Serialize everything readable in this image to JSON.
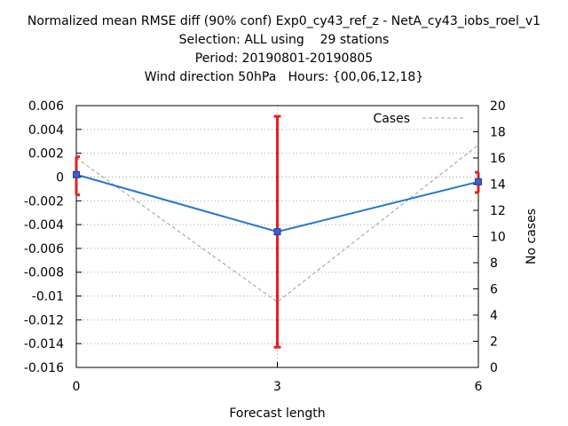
{
  "chart_data": {
    "type": "line",
    "title_lines": [
      "Normalized mean RMSE diff (90% conf) Exp0_cy43_ref_z - NetA_cy43_iobs_roel_v1",
      "Selection: ALL using    29 stations",
      "Period: 20190801-20190805",
      "Wind direction 50hPa   Hours: {00,06,12,18}"
    ],
    "xlabel": "Forecast length",
    "ylabel": "",
    "y2label": "No cases",
    "x_ticks": [
      0,
      3,
      6
    ],
    "xlim": [
      0,
      6
    ],
    "ylim": [
      -0.016,
      0.006
    ],
    "y_ticks": [
      0.006,
      0.004,
      0.002,
      0,
      -0.002,
      -0.004,
      -0.006,
      -0.008,
      -0.01,
      -0.012,
      -0.014,
      -0.016
    ],
    "y2lim": [
      0,
      20
    ],
    "y2_ticks": [
      0,
      2,
      4,
      6,
      8,
      10,
      12,
      14,
      16,
      18,
      20
    ],
    "grid": true,
    "legend_position": "top-right",
    "series": [
      {
        "name": "",
        "axis": "left",
        "color": "#1f77d4",
        "x": [
          0,
          3,
          6
        ],
        "y": [
          0.0002,
          -0.0046,
          -0.0004
        ],
        "err_low": [
          -0.0015,
          -0.0143,
          -0.0013
        ],
        "err_high": [
          0.0017,
          0.0051,
          0.0004
        ],
        "err_color": "#e81f1f"
      },
      {
        "name": "Cases",
        "axis": "right",
        "color": "#9a9a9a",
        "dashed": true,
        "x": [
          0,
          3,
          6
        ],
        "y": [
          16,
          5,
          17
        ]
      }
    ]
  }
}
